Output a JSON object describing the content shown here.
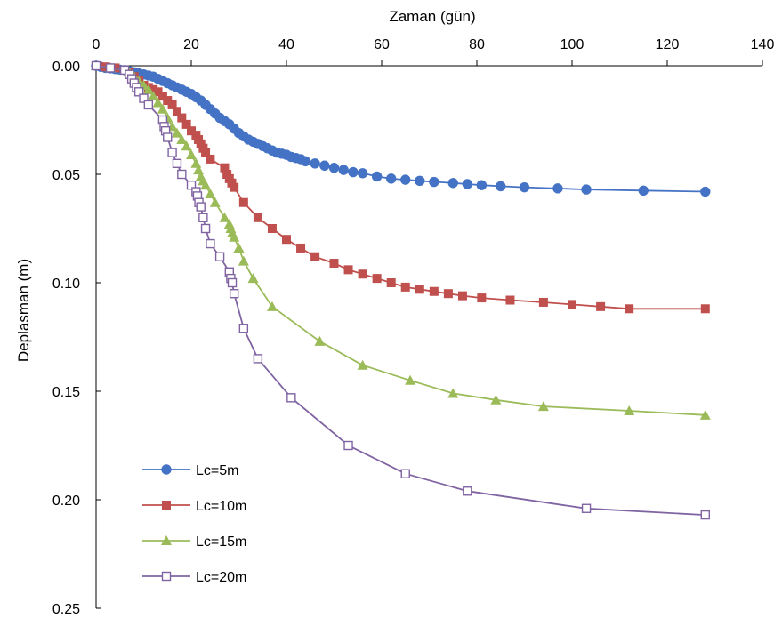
{
  "chart_data": {
    "type": "line",
    "xlabel": "Zaman (gün)",
    "ylabel": "Deplasman (m)",
    "xlim": [
      0,
      140
    ],
    "ylim": [
      0,
      0.25
    ],
    "y_inverted": true,
    "x_axis_position": "top",
    "x_ticks": [
      "0",
      "20",
      "40",
      "60",
      "80",
      "100",
      "120",
      "140"
    ],
    "y_ticks": [
      "0.00",
      "0.05",
      "0.10",
      "0.15",
      "0.20",
      "0.25"
    ],
    "grid": false,
    "legend_position": "bottom-left",
    "series": [
      {
        "name": "Lc=5m",
        "color": "#4472C4",
        "marker": "circle-filled",
        "x": [
          0,
          1,
          2,
          3,
          4,
          5,
          6,
          7,
          8,
          9,
          10,
          11,
          12,
          13,
          14,
          15,
          16,
          17,
          18,
          19,
          20,
          21,
          22,
          23,
          24,
          25,
          26,
          27,
          28,
          29,
          30,
          31,
          32,
          33,
          34,
          35,
          36,
          37,
          38,
          39,
          40,
          41,
          42,
          43,
          44,
          46,
          48,
          50,
          52,
          54,
          56,
          59,
          62,
          65,
          68,
          71,
          75,
          78,
          81,
          85,
          90,
          97,
          103,
          115,
          128
        ],
        "y": [
          0,
          0.0005,
          0.001,
          0.0012,
          0.0015,
          0.0018,
          0.002,
          0.0025,
          0.003,
          0.0035,
          0.004,
          0.0045,
          0.005,
          0.006,
          0.007,
          0.008,
          0.009,
          0.01,
          0.011,
          0.012,
          0.013,
          0.0145,
          0.016,
          0.018,
          0.02,
          0.022,
          0.024,
          0.0255,
          0.027,
          0.029,
          0.031,
          0.0325,
          0.034,
          0.035,
          0.036,
          0.037,
          0.038,
          0.039,
          0.04,
          0.0405,
          0.041,
          0.042,
          0.0425,
          0.043,
          0.044,
          0.045,
          0.046,
          0.047,
          0.048,
          0.049,
          0.0495,
          0.051,
          0.052,
          0.0525,
          0.053,
          0.0535,
          0.054,
          0.0545,
          0.055,
          0.0555,
          0.056,
          0.0565,
          0.057,
          0.0575,
          0.058
        ]
      },
      {
        "name": "Lc=10m",
        "color": "#C0504D",
        "marker": "square-filled",
        "x": [
          0,
          2,
          4,
          6,
          7,
          8,
          9,
          10,
          11,
          12,
          13,
          14,
          15,
          16,
          17,
          18,
          19,
          20,
          21,
          21.5,
          22,
          22.5,
          23,
          24,
          27,
          27.5,
          28,
          28.5,
          29,
          31,
          34,
          37,
          40,
          43,
          46,
          50,
          53,
          56,
          59,
          62,
          65,
          68,
          71,
          74,
          77,
          81,
          87,
          94,
          100,
          106,
          112,
          128
        ],
        "y": [
          0,
          0.0005,
          0.001,
          0.002,
          0.003,
          0.005,
          0.007,
          0.009,
          0.01,
          0.011,
          0.012,
          0.014,
          0.016,
          0.018,
          0.021,
          0.024,
          0.027,
          0.03,
          0.032,
          0.034,
          0.036,
          0.038,
          0.04,
          0.043,
          0.047,
          0.05,
          0.052,
          0.054,
          0.056,
          0.063,
          0.07,
          0.075,
          0.08,
          0.084,
          0.088,
          0.091,
          0.094,
          0.096,
          0.098,
          0.1,
          0.102,
          0.103,
          0.104,
          0.105,
          0.106,
          0.107,
          0.108,
          0.109,
          0.11,
          0.111,
          0.112,
          0.112
        ]
      },
      {
        "name": "Lc=15m",
        "color": "#9BBB59",
        "marker": "triangle-filled",
        "x": [
          0,
          3,
          6,
          7,
          8,
          9,
          10,
          11,
          12,
          13,
          14,
          15,
          16,
          17,
          18,
          19,
          20,
          21,
          21.5,
          22,
          22.5,
          23,
          24,
          25,
          27,
          28,
          28.3,
          28.6,
          29,
          30,
          31,
          33,
          37,
          47,
          56,
          66,
          75,
          84,
          94,
          112,
          128
        ],
        "y": [
          0,
          0.001,
          0.002,
          0.003,
          0.005,
          0.007,
          0.009,
          0.011,
          0.014,
          0.017,
          0.02,
          0.024,
          0.028,
          0.031,
          0.034,
          0.037,
          0.041,
          0.045,
          0.048,
          0.051,
          0.053,
          0.055,
          0.059,
          0.063,
          0.07,
          0.073,
          0.075,
          0.077,
          0.079,
          0.084,
          0.09,
          0.098,
          0.111,
          0.127,
          0.138,
          0.145,
          0.151,
          0.154,
          0.157,
          0.159,
          0.161
        ]
      },
      {
        "name": "Lc=20m",
        "color": "#8064A2",
        "marker": "square-open",
        "x": [
          0,
          3,
          6,
          7,
          7.5,
          8,
          8.5,
          9,
          10,
          11,
          14,
          14.3,
          14.6,
          15,
          16,
          17,
          18,
          20,
          21,
          21.3,
          21.6,
          22,
          22.5,
          23,
          24,
          26,
          28,
          28.3,
          28.6,
          29,
          31,
          34,
          41,
          53,
          65,
          78,
          103,
          128
        ],
        "y": [
          0,
          0.001,
          0.002,
          0.004,
          0.006,
          0.008,
          0.01,
          0.012,
          0.015,
          0.018,
          0.025,
          0.028,
          0.03,
          0.033,
          0.04,
          0.045,
          0.05,
          0.055,
          0.058,
          0.06,
          0.063,
          0.065,
          0.07,
          0.075,
          0.082,
          0.088,
          0.095,
          0.098,
          0.1,
          0.105,
          0.121,
          0.135,
          0.153,
          0.175,
          0.188,
          0.196,
          0.204,
          0.207
        ]
      }
    ]
  }
}
